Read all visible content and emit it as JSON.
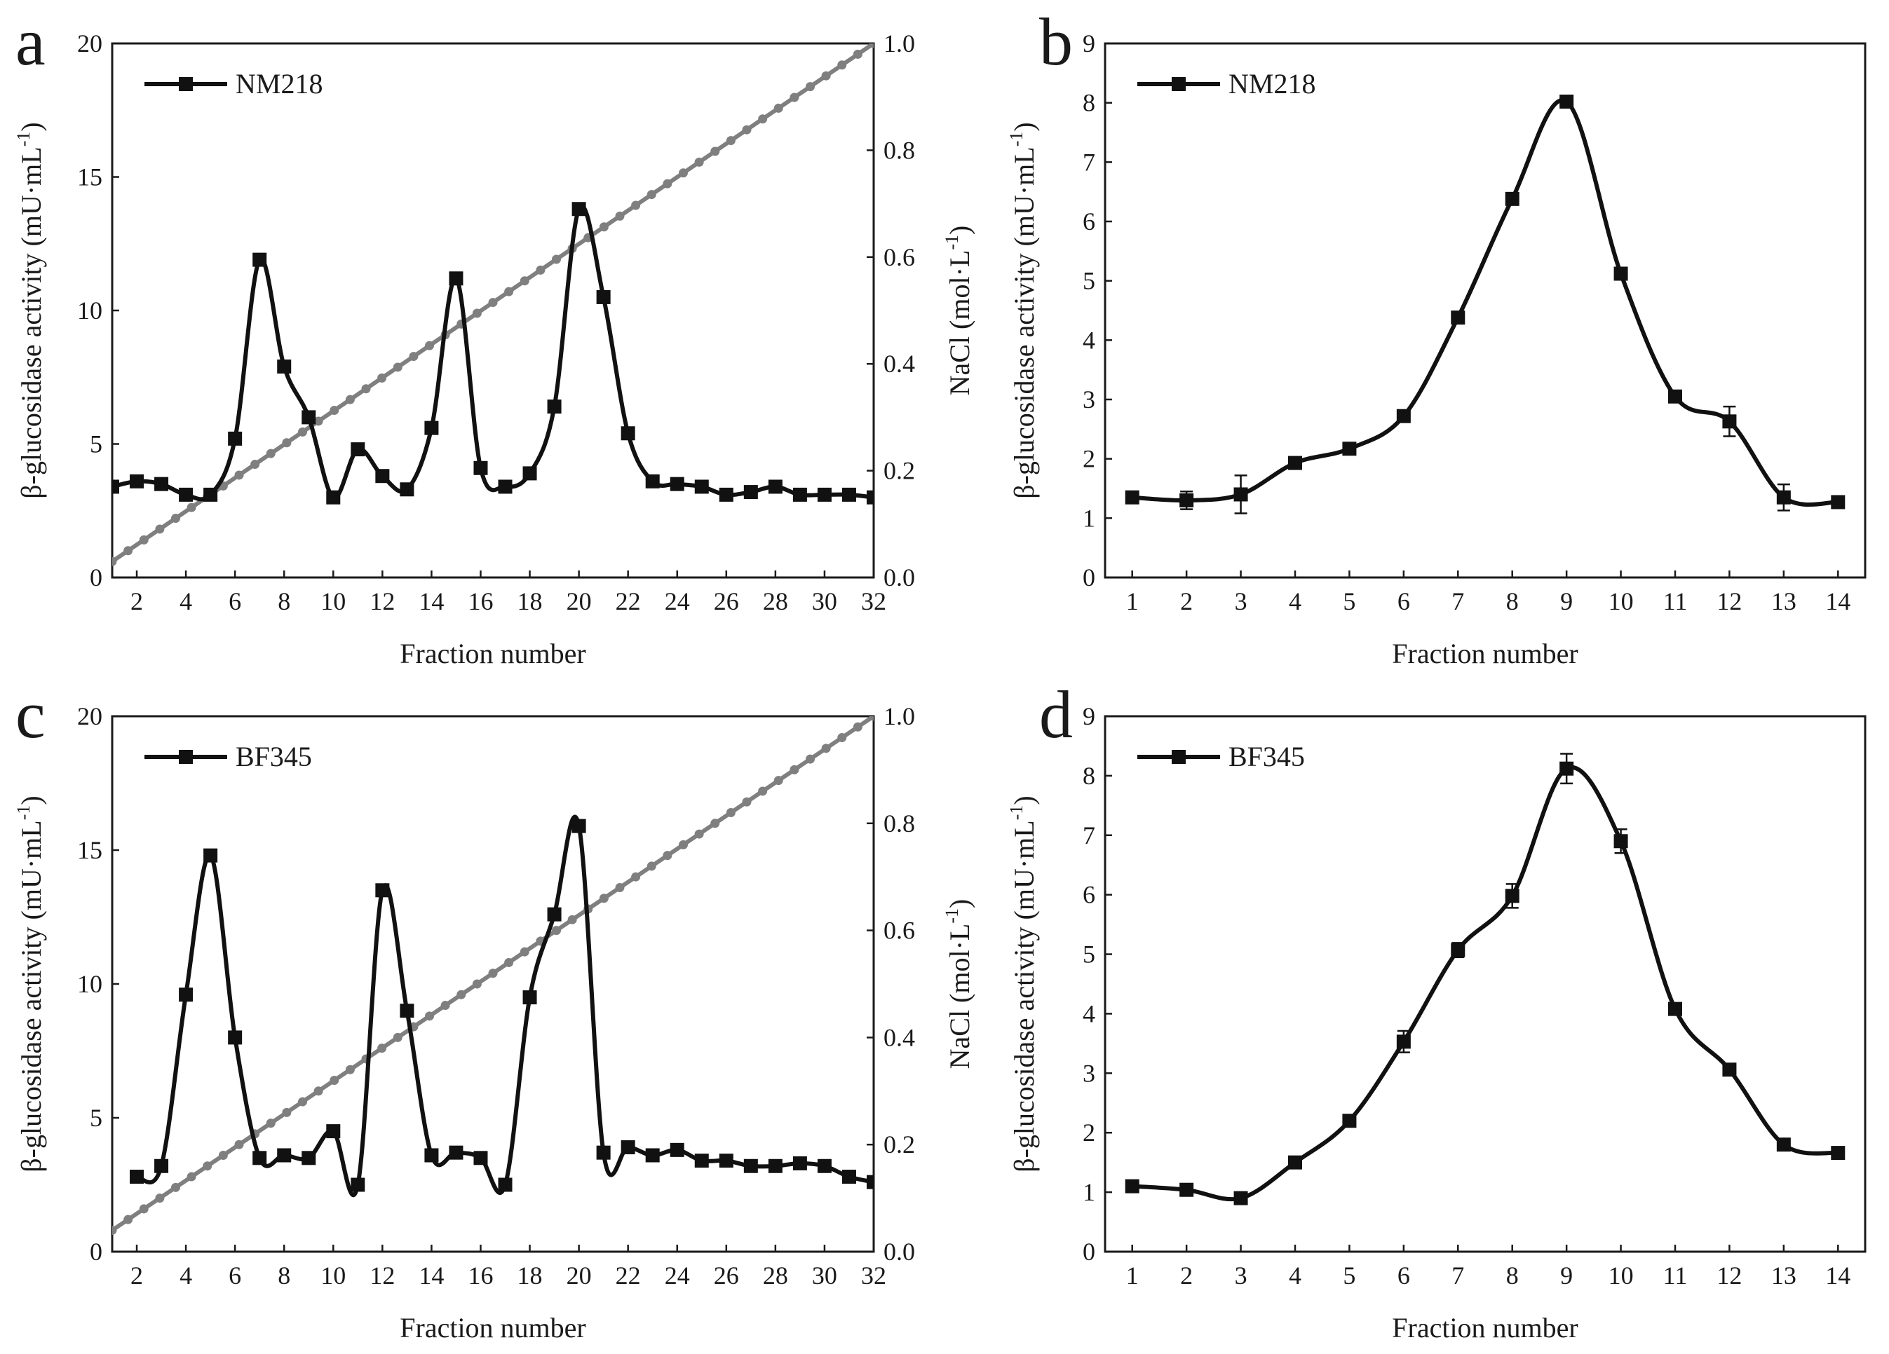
{
  "chart_data": [
    {
      "panel": "a",
      "type": "line",
      "xlabel": "Fraction number",
      "ylabel": "β-glucosidase activity (mU·mL",
      "ylabel_sup": "-1",
      "ylabel_end": ")",
      "y2label": "NaCl (mol·L",
      "y2label_sup": "-1",
      "y2label_end": ")",
      "xlim": [
        1,
        32
      ],
      "ylim": [
        0,
        20
      ],
      "y2lim": [
        0,
        1.0
      ],
      "x_ticks": [
        2,
        4,
        6,
        8,
        10,
        12,
        14,
        16,
        18,
        20,
        22,
        24,
        26,
        28,
        30,
        32
      ],
      "y_ticks": [
        0,
        5,
        10,
        15,
        20
      ],
      "y2_ticks": [
        "0.0",
        "0.2",
        "0.4",
        "0.6",
        "0.8",
        "1.0"
      ],
      "legend": "top-left",
      "series": [
        {
          "name": "NM218",
          "color": "#111111",
          "marker": "square",
          "x": [
            1,
            2,
            3,
            4,
            5,
            6,
            7,
            8,
            9,
            10,
            11,
            12,
            13,
            14,
            15,
            16,
            17,
            18,
            19,
            20,
            21,
            22,
            23,
            24,
            25,
            26,
            27,
            28,
            29,
            30,
            31,
            32
          ],
          "values": [
            3.4,
            3.6,
            3.5,
            3.1,
            3.1,
            5.2,
            11.9,
            7.9,
            6.0,
            3.0,
            4.8,
            3.8,
            3.3,
            5.6,
            11.2,
            4.1,
            3.4,
            3.9,
            6.4,
            13.8,
            10.5,
            5.4,
            3.6,
            3.5,
            3.4,
            3.1,
            3.2,
            3.4,
            3.1,
            3.1,
            3.1,
            3.0
          ]
        },
        {
          "name": "NaCl gradient",
          "color": "#7f7f7f",
          "marker": "circle",
          "axis": "right",
          "x": [
            1,
            32
          ],
          "values": [
            0.03,
            1.0
          ]
        }
      ]
    },
    {
      "panel": "b",
      "type": "line",
      "xlabel": "Fraction number",
      "ylabel": "β-glucosidase activity (mU·mL",
      "ylabel_sup": "-1",
      "ylabel_end": ")",
      "xlim": [
        0.5,
        14.5
      ],
      "ylim": [
        0,
        9
      ],
      "x_ticks": [
        1,
        2,
        3,
        4,
        5,
        6,
        7,
        8,
        9,
        10,
        11,
        12,
        13,
        14
      ],
      "y_ticks": [
        0,
        1,
        2,
        3,
        4,
        5,
        6,
        7,
        8,
        9
      ],
      "legend": "top-left",
      "series": [
        {
          "name": "NM218",
          "color": "#111111",
          "marker": "square",
          "x": [
            1,
            2,
            3,
            4,
            5,
            6,
            7,
            8,
            9,
            10,
            11,
            12,
            13,
            14
          ],
          "values": [
            1.35,
            1.3,
            1.4,
            1.93,
            2.17,
            2.72,
            4.38,
            6.38,
            8.02,
            5.12,
            3.05,
            2.63,
            1.35,
            1.27
          ],
          "errors": [
            0.04,
            0.15,
            0.32,
            0.04,
            0.04,
            0.06,
            0.07,
            0.08,
            0.08,
            0.09,
            0.07,
            0.25,
            0.22,
            0.05
          ]
        }
      ]
    },
    {
      "panel": "c",
      "type": "line",
      "xlabel": "Fraction number",
      "ylabel": "β-glucosidase activity (mU·mL",
      "ylabel_sup": "-1",
      "ylabel_end": ")",
      "y2label": "NaCl (mol·L",
      "y2label_sup": "-1",
      "y2label_end": ")",
      "xlim": [
        1,
        32
      ],
      "ylim": [
        0,
        20
      ],
      "y2lim": [
        0,
        1.0
      ],
      "x_ticks": [
        2,
        4,
        6,
        8,
        10,
        12,
        14,
        16,
        18,
        20,
        22,
        24,
        26,
        28,
        30,
        32
      ],
      "y_ticks": [
        0,
        5,
        10,
        15,
        20
      ],
      "y2_ticks": [
        "0.0",
        "0.2",
        "0.4",
        "0.6",
        "0.8",
        "1.0"
      ],
      "legend": "top-left",
      "series": [
        {
          "name": "BF345",
          "color": "#111111",
          "marker": "square",
          "x": [
            2,
            3,
            4,
            5,
            6,
            7,
            8,
            9,
            10,
            11,
            12,
            13,
            14,
            15,
            16,
            17,
            18,
            19,
            20,
            21,
            22,
            23,
            24,
            25,
            26,
            27,
            28,
            29,
            30,
            31,
            32
          ],
          "values": [
            2.8,
            3.2,
            9.6,
            14.8,
            8.0,
            3.5,
            3.6,
            3.5,
            4.5,
            2.5,
            13.5,
            9.0,
            3.6,
            3.7,
            3.5,
            2.5,
            9.5,
            12.6,
            15.9,
            3.7,
            3.9,
            3.6,
            3.8,
            3.4,
            3.4,
            3.2,
            3.2,
            3.3,
            3.2,
            2.8,
            2.6
          ]
        },
        {
          "name": "NaCl gradient",
          "color": "#7f7f7f",
          "marker": "circle",
          "axis": "right",
          "x": [
            1,
            32
          ],
          "values": [
            0.04,
            1.0
          ]
        }
      ]
    },
    {
      "panel": "d",
      "type": "line",
      "xlabel": "Fraction number",
      "ylabel": "β-glucosidase activity (mU·mL",
      "ylabel_sup": "-1",
      "ylabel_end": ")",
      "xlim": [
        0.5,
        14.5
      ],
      "ylim": [
        0,
        9
      ],
      "x_ticks": [
        1,
        2,
        3,
        4,
        5,
        6,
        7,
        8,
        9,
        10,
        11,
        12,
        13,
        14
      ],
      "y_ticks": [
        0,
        1,
        2,
        3,
        4,
        5,
        6,
        7,
        8,
        9
      ],
      "legend": "top-left",
      "series": [
        {
          "name": "BF345",
          "color": "#111111",
          "marker": "square",
          "x": [
            1,
            2,
            3,
            4,
            5,
            6,
            7,
            8,
            9,
            10,
            11,
            12,
            13,
            14
          ],
          "values": [
            1.1,
            1.04,
            0.9,
            1.5,
            2.2,
            3.53,
            5.07,
            5.98,
            8.12,
            6.9,
            4.08,
            3.06,
            1.8,
            1.66
          ],
          "errors": [
            0.04,
            0.04,
            0.05,
            0.08,
            0.04,
            0.18,
            0.12,
            0.2,
            0.25,
            0.2,
            0.06,
            0.05,
            0.1,
            0.05
          ]
        }
      ]
    }
  ]
}
